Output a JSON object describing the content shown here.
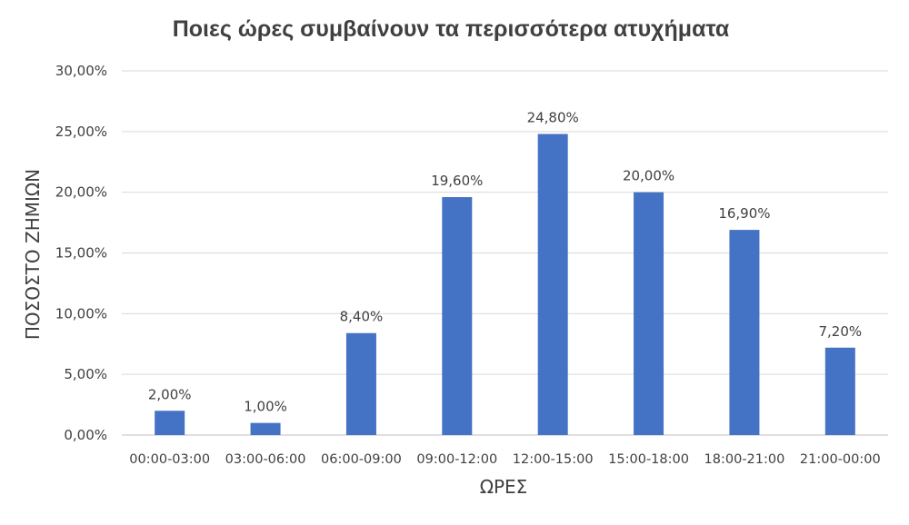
{
  "chart_data": {
    "type": "bar",
    "title": "Ποιες ώρες συμβαίνουν τα περισσότερα ατυχήματα",
    "xlabel": "ΩΡΕΣ",
    "ylabel": "ΠΟΣΟΣΤΟ ΖΗΜΙΩΝ",
    "categories": [
      "00:00-03:00",
      "03:00-06:00",
      "06:00-09:00",
      "09:00-12:00",
      "12:00-15:00",
      "15:00-18:00",
      "18:00-21:00",
      "21:00-00:00"
    ],
    "values": [
      2.0,
      1.0,
      8.4,
      19.6,
      24.8,
      20.0,
      16.9,
      7.2
    ],
    "data_labels": [
      "2,00%",
      "1,00%",
      "8,40%",
      "19,60%",
      "24,80%",
      "20,00%",
      "16,90%",
      "7,20%"
    ],
    "ylim": [
      0,
      30
    ],
    "yticks": [
      0,
      5,
      10,
      15,
      20,
      25,
      30
    ],
    "ytick_labels": [
      "0,00%",
      "5,00%",
      "10,00%",
      "15,00%",
      "20,00%",
      "25,00%",
      "30,00%"
    ],
    "grid": true,
    "legend": "none",
    "colors": {
      "bar": "#4472c4",
      "grid": "#d9d9d9",
      "text": "#404040"
    }
  }
}
